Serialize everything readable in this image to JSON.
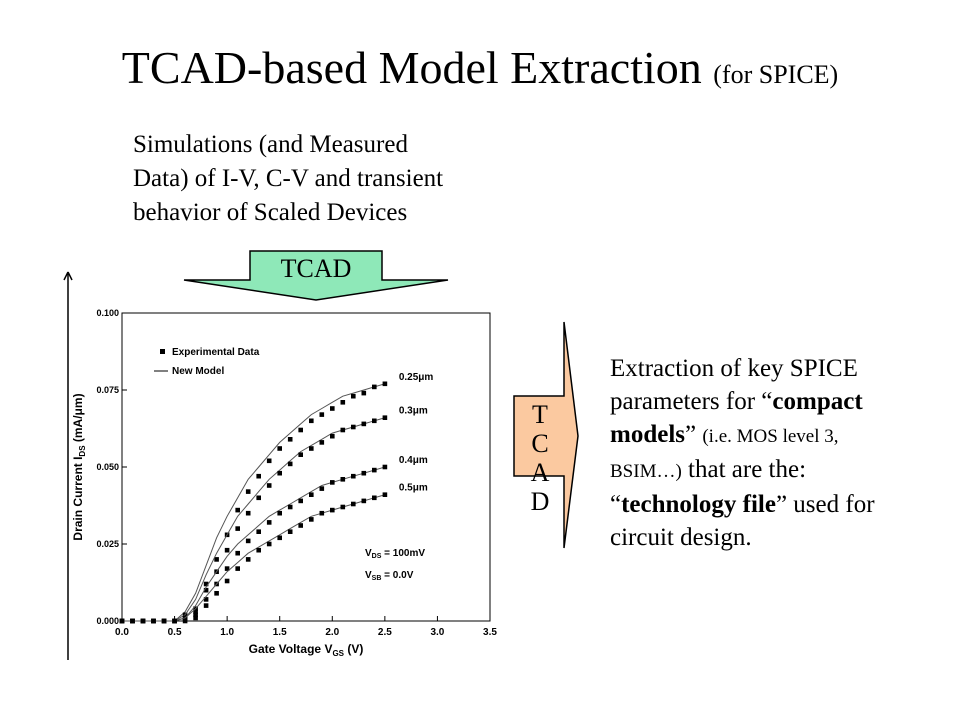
{
  "slide": {
    "title": "TCAD-based Model Extraction",
    "title_sub": "(for SPICE)",
    "sim_lines": [
      "Simulations (and Measured",
      "Data) of I-V, C-V and transient",
      "behavior of Scaled Devices"
    ],
    "tcad_down_label": "TCAD",
    "tcad_right_letters": [
      "T",
      "C",
      "A",
      "D"
    ],
    "extract": {
      "p1": "Extraction of key SPICE parameters for “",
      "b1": "compact models",
      "p2": "” ",
      "small": "(i.e. MOS level 3, BSIM…)",
      "p3": " that are the: “",
      "b2": "technology file",
      "p4": "” used for circuit design."
    },
    "colors": {
      "arrow_fill": "#8ee8b8",
      "arrow_right_fill": "#fbc9a0"
    }
  },
  "chart_data": {
    "type": "line",
    "xlabel": "Gate Voltage V",
    "xlabel_sub": "GS",
    "xlabel_suffix": " (V)",
    "ylabel": "Drain Current I",
    "ylabel_sub": "DS",
    "ylabel_suffix": " (mA/μm)",
    "xlim": [
      0.0,
      3.5
    ],
    "ylim": [
      0.0,
      0.1
    ],
    "xticks": [
      "0.0",
      "0.5",
      "1.0",
      "1.5",
      "2.0",
      "2.5",
      "3.0",
      "3.5"
    ],
    "yticks": [
      "0.000",
      "0.025",
      "0.050",
      "0.075",
      "0.100"
    ],
    "legend": [
      "Experimental Data",
      "New Model"
    ],
    "annotation": {
      "vds_main": "V",
      "vds_sub": "DS",
      "vds_val": " = 100mV",
      "vsb_main": "V",
      "vsb_sub": "SB",
      "vsb_val": " = 0.0V"
    },
    "x": [
      0.0,
      0.1,
      0.2,
      0.3,
      0.4,
      0.5,
      0.6,
      0.7,
      0.8,
      0.9,
      1.0,
      1.1,
      1.2,
      1.3,
      1.4,
      1.5,
      1.6,
      1.7,
      1.8,
      1.9,
      2.0,
      2.1,
      2.2,
      2.3,
      2.4,
      2.5
    ],
    "series": [
      {
        "name": "0.25μm",
        "measured": [
          0.0,
          0.0,
          0.0,
          0.0,
          0.0,
          0.0,
          0.002,
          0.004,
          0.012,
          0.02,
          0.028,
          0.036,
          0.042,
          0.047,
          0.052,
          0.056,
          0.059,
          0.062,
          0.065,
          0.067,
          0.069,
          0.071,
          0.073,
          0.074,
          0.076,
          0.077
        ],
        "model": [
          0.0,
          0.0,
          0.0,
          0.0,
          0.0,
          0.0,
          0.003,
          0.009,
          0.018,
          0.027,
          0.034,
          0.04,
          0.046,
          0.05,
          0.054,
          0.058,
          0.061,
          0.064,
          0.067,
          0.069,
          0.071,
          0.073,
          0.074,
          0.075,
          0.076,
          0.077
        ]
      },
      {
        "name": "0.3μm",
        "measured": [
          0.0,
          0.0,
          0.0,
          0.0,
          0.0,
          0.0,
          0.001,
          0.003,
          0.01,
          0.016,
          0.023,
          0.03,
          0.035,
          0.04,
          0.044,
          0.048,
          0.051,
          0.054,
          0.056,
          0.058,
          0.06,
          0.062,
          0.063,
          0.064,
          0.065,
          0.066
        ],
        "model": [
          0.0,
          0.0,
          0.0,
          0.0,
          0.0,
          0.0,
          0.002,
          0.007,
          0.015,
          0.022,
          0.028,
          0.034,
          0.038,
          0.042,
          0.046,
          0.049,
          0.052,
          0.055,
          0.057,
          0.059,
          0.061,
          0.062,
          0.063,
          0.064,
          0.065,
          0.066
        ]
      },
      {
        "name": "0.4μm",
        "measured": [
          0.0,
          0.0,
          0.0,
          0.0,
          0.0,
          0.0,
          0.001,
          0.002,
          0.007,
          0.012,
          0.017,
          0.022,
          0.026,
          0.029,
          0.032,
          0.035,
          0.037,
          0.039,
          0.041,
          0.043,
          0.045,
          0.046,
          0.047,
          0.048,
          0.049,
          0.05
        ],
        "model": [
          0.0,
          0.0,
          0.0,
          0.0,
          0.0,
          0.0,
          0.001,
          0.005,
          0.011,
          0.016,
          0.021,
          0.025,
          0.028,
          0.031,
          0.034,
          0.036,
          0.038,
          0.04,
          0.042,
          0.044,
          0.045,
          0.046,
          0.047,
          0.048,
          0.049,
          0.05
        ]
      },
      {
        "name": "0.5μm",
        "measured": [
          0.0,
          0.0,
          0.0,
          0.0,
          0.0,
          0.0,
          0.0,
          0.001,
          0.005,
          0.009,
          0.013,
          0.017,
          0.02,
          0.023,
          0.025,
          0.027,
          0.029,
          0.031,
          0.033,
          0.035,
          0.036,
          0.037,
          0.038,
          0.039,
          0.04,
          0.041
        ],
        "model": [
          0.0,
          0.0,
          0.0,
          0.0,
          0.0,
          0.0,
          0.001,
          0.004,
          0.008,
          0.012,
          0.016,
          0.019,
          0.022,
          0.024,
          0.026,
          0.028,
          0.03,
          0.032,
          0.034,
          0.035,
          0.036,
          0.037,
          0.038,
          0.039,
          0.04,
          0.041
        ]
      }
    ]
  }
}
